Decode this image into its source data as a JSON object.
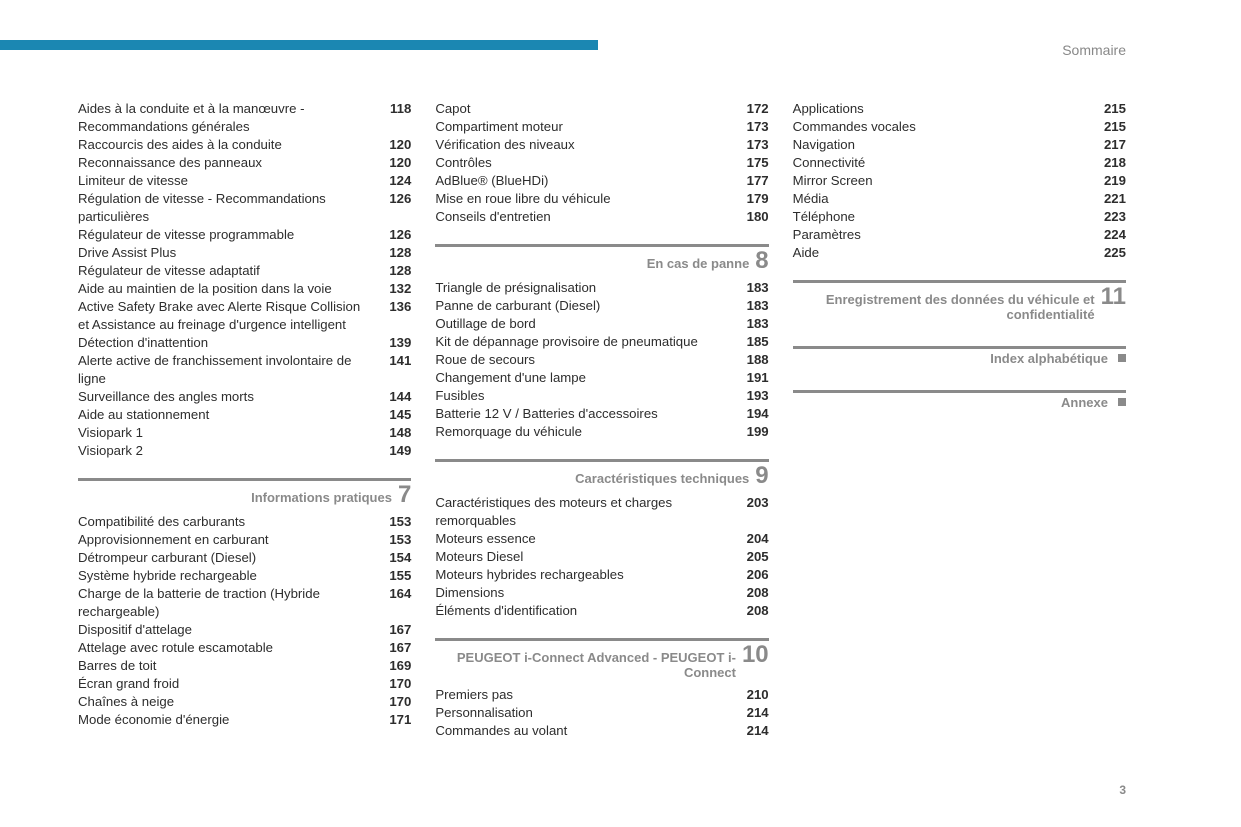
{
  "header": {
    "title": "Sommaire",
    "bar_color": "#1b87b2"
  },
  "page_number": "3",
  "columns": [
    {
      "blocks": [
        {
          "type": "entries",
          "items": [
            {
              "label": "Aides à la conduite et à la manœuvre - Recommandations générales",
              "page": "118"
            },
            {
              "label": "Raccourcis des aides à la conduite",
              "page": "120"
            },
            {
              "label": "Reconnaissance des panneaux",
              "page": "120"
            },
            {
              "label": "Limiteur de vitesse",
              "page": "124"
            },
            {
              "label": "Régulation de vitesse - Recommandations particulières",
              "page": "126"
            },
            {
              "label": "Régulateur de vitesse programmable",
              "page": "126"
            },
            {
              "label": "Drive Assist Plus",
              "page": "128"
            },
            {
              "label": "Régulateur de vitesse adaptatif",
              "page": "128"
            },
            {
              "label": "Aide au maintien de la position dans la voie",
              "page": "132"
            },
            {
              "label": "Active Safety Brake avec Alerte Risque Collision et Assistance au freinage d'urgence intelligent",
              "page": "136"
            },
            {
              "label": "Détection d'inattention",
              "page": "139"
            },
            {
              "label": "Alerte active de franchissement involontaire de ligne",
              "page": "141"
            },
            {
              "label": "Surveillance des angles morts",
              "page": "144"
            },
            {
              "label": "Aide au stationnement",
              "page": "145"
            },
            {
              "label": "Visiopark 1",
              "page": "148"
            },
            {
              "label": "Visiopark 2",
              "page": "149"
            }
          ]
        },
        {
          "type": "section",
          "title": "Informations pratiques",
          "number": "7"
        },
        {
          "type": "entries",
          "items": [
            {
              "label": "Compatibilité des carburants",
              "page": "153"
            },
            {
              "label": "Approvisionnement en carburant",
              "page": "153"
            },
            {
              "label": "Détrompeur carburant (Diesel)",
              "page": "154"
            },
            {
              "label": "Système hybride rechargeable",
              "page": "155"
            },
            {
              "label": "Charge de la batterie de traction (Hybride rechargeable)",
              "page": "164"
            },
            {
              "label": "Dispositif d'attelage",
              "page": "167"
            },
            {
              "label": "Attelage avec rotule escamotable",
              "page": "167"
            },
            {
              "label": "Barres de toit",
              "page": "169"
            },
            {
              "label": "Écran grand froid",
              "page": "170"
            },
            {
              "label": "Chaînes à neige",
              "page": "170"
            },
            {
              "label": "Mode économie d'énergie",
              "page": "171"
            }
          ]
        }
      ]
    },
    {
      "blocks": [
        {
          "type": "entries",
          "items": [
            {
              "label": "Capot",
              "page": "172"
            },
            {
              "label": "Compartiment moteur",
              "page": "173"
            },
            {
              "label": "Vérification des niveaux",
              "page": "173"
            },
            {
              "label": "Contrôles",
              "page": "175"
            },
            {
              "label": "AdBlue® (BlueHDi)",
              "page": "177"
            },
            {
              "label": "Mise en roue libre du véhicule",
              "page": "179"
            },
            {
              "label": "Conseils d'entretien",
              "page": "180"
            }
          ]
        },
        {
          "type": "section",
          "title": "En cas de panne",
          "number": "8"
        },
        {
          "type": "entries",
          "items": [
            {
              "label": "Triangle de présignalisation",
              "page": "183"
            },
            {
              "label": "Panne de carburant (Diesel)",
              "page": "183"
            },
            {
              "label": "Outillage de bord",
              "page": "183"
            },
            {
              "label": "Kit de dépannage provisoire de pneumatique",
              "page": "185"
            },
            {
              "label": "Roue de secours",
              "page": "188"
            },
            {
              "label": "Changement d'une lampe",
              "page": "191"
            },
            {
              "label": "Fusibles",
              "page": "193"
            },
            {
              "label": "Batterie 12 V / Batteries d'accessoires",
              "page": "194"
            },
            {
              "label": "Remorquage du véhicule",
              "page": "199"
            }
          ]
        },
        {
          "type": "section",
          "title": "Caractéristiques techniques",
          "number": "9"
        },
        {
          "type": "entries",
          "items": [
            {
              "label": "Caractéristiques des moteurs et charges remorquables",
              "page": "203"
            },
            {
              "label": "Moteurs essence",
              "page": "204"
            },
            {
              "label": "Moteurs Diesel",
              "page": "205"
            },
            {
              "label": "Moteurs hybrides rechargeables",
              "page": "206"
            },
            {
              "label": "Dimensions",
              "page": "208"
            },
            {
              "label": "Éléments d'identification",
              "page": "208"
            }
          ]
        },
        {
          "type": "section",
          "title": "PEUGEOT i-Connect Advanced - PEUGEOT i-Connect",
          "number": "10"
        },
        {
          "type": "entries",
          "items": [
            {
              "label": "Premiers pas",
              "page": "210"
            },
            {
              "label": "Personnalisation",
              "page": "214"
            },
            {
              "label": "Commandes au volant",
              "page": "214"
            }
          ]
        }
      ]
    },
    {
      "blocks": [
        {
          "type": "entries",
          "items": [
            {
              "label": "Applications",
              "page": "215"
            },
            {
              "label": "Commandes vocales",
              "page": "215"
            },
            {
              "label": "Navigation",
              "page": "217"
            },
            {
              "label": "Connectivité",
              "page": "218"
            },
            {
              "label": "Mirror Screen",
              "page": "219"
            },
            {
              "label": "Média",
              "page": "221"
            },
            {
              "label": "Téléphone",
              "page": "223"
            },
            {
              "label": "Paramètres",
              "page": "224"
            },
            {
              "label": "Aide",
              "page": "225"
            }
          ]
        },
        {
          "type": "section",
          "title": "Enregistrement des données du véhicule et confidentialité",
          "number": "11"
        },
        {
          "type": "section-bullet",
          "title": "Index alphabétique"
        },
        {
          "type": "section-bullet",
          "title": "Annexe"
        }
      ]
    }
  ]
}
